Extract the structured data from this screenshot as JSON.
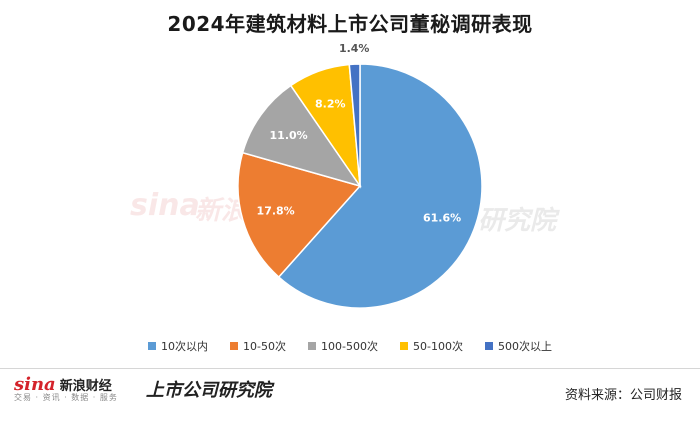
{
  "title": "2024年建筑材料上市公司董秘调研表现",
  "chart_data": {
    "type": "pie",
    "categories": [
      "10次以内",
      "10-50次",
      "100-500次",
      "50-100次",
      "500次以上"
    ],
    "values": [
      61.6,
      17.8,
      11.0,
      8.2,
      1.4
    ],
    "value_labels": [
      "61.6%",
      "17.8%",
      "11.0%",
      "8.2%",
      "1.4%"
    ],
    "colors": [
      "#5b9bd5",
      "#ed7d31",
      "#a5a5a5",
      "#ffc000",
      "#4472c4"
    ],
    "legend_position": "bottom"
  },
  "footer": {
    "brand_logo_text": "sina",
    "brand_name": "新浪财经",
    "brand_sub": "交易 · 资讯 · 数据 · 服务",
    "research_name": "上市公司研究院",
    "source": "资料来源：公司财报"
  },
  "watermark": {
    "logo": "sina",
    "name": "新浪",
    "research": "研究院"
  }
}
